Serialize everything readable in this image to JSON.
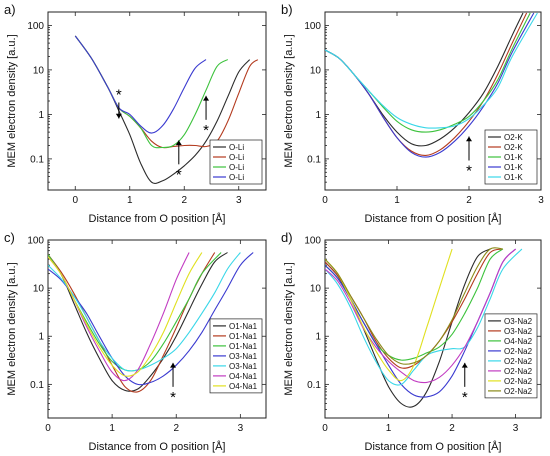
{
  "chart_data": [
    {
      "type": "line",
      "panel_label": "a)",
      "xlabel": "Distance from O position [Å]",
      "ylabel": "MEM electron density [a.u.]",
      "xlim": [
        -0.5,
        3.5
      ],
      "ylim": [
        0.02,
        200
      ],
      "yscale": "log",
      "xticks": [
        0,
        1,
        2,
        3
      ],
      "yticks": [
        0.1,
        1,
        10,
        100
      ],
      "ytick_labels": [
        "0.1",
        "1",
        "10",
        "100"
      ],
      "legend_position": "right-bottom",
      "series": [
        {
          "name": "O-Li",
          "color": "#2b2b2b",
          "x": [
            0,
            0.3,
            0.6,
            0.8,
            1.0,
            1.2,
            1.4,
            1.6,
            1.8,
            2.0,
            2.2,
            2.4,
            2.6,
            2.8,
            3.0,
            3.2
          ],
          "y": [
            58,
            18,
            4,
            1.2,
            0.35,
            0.08,
            0.03,
            0.032,
            0.045,
            0.07,
            0.12,
            0.25,
            0.7,
            2.5,
            9,
            17
          ]
        },
        {
          "name": "O-Li",
          "color": "#b33a1e",
          "x": [
            0,
            0.3,
            0.6,
            0.8,
            1.0,
            1.2,
            1.4,
            1.6,
            1.8,
            2.0,
            2.2,
            2.4,
            2.6,
            2.8,
            3.0,
            3.2,
            3.35
          ],
          "y": [
            58,
            18,
            4,
            1.4,
            0.9,
            0.5,
            0.25,
            0.18,
            0.19,
            0.2,
            0.2,
            0.19,
            0.25,
            0.7,
            3,
            12,
            17
          ]
        },
        {
          "name": "O-Li",
          "color": "#3cc23c",
          "x": [
            0,
            0.3,
            0.6,
            0.8,
            1.0,
            1.2,
            1.4,
            1.6,
            1.8,
            2.0,
            2.2,
            2.4,
            2.6,
            2.8
          ],
          "y": [
            58,
            18,
            4,
            1.4,
            0.9,
            0.5,
            0.2,
            0.18,
            0.2,
            0.35,
            1.0,
            3.5,
            12,
            17
          ]
        },
        {
          "name": "O-Li",
          "color": "#3a3ad0",
          "x": [
            0,
            0.3,
            0.6,
            0.8,
            1.0,
            1.2,
            1.4,
            1.6,
            1.8,
            2.0,
            2.2,
            2.4
          ],
          "y": [
            58,
            18,
            4,
            1.4,
            1.0,
            0.55,
            0.38,
            0.55,
            1.3,
            4,
            11,
            17
          ]
        }
      ],
      "annotations": [
        {
          "text": "*",
          "x": 0.8,
          "y": 2.8
        },
        {
          "text": "*",
          "x": 1.9,
          "y": 0.045
        },
        {
          "text": "*",
          "x": 2.4,
          "y": 0.45
        }
      ]
    },
    {
      "type": "line",
      "panel_label": "b)",
      "xlabel": "Distance from O position [Å]",
      "ylabel": "MEM electron density [a.u.]",
      "xlim": [
        0,
        3
      ],
      "ylim": [
        0.02,
        200
      ],
      "yscale": "log",
      "xticks": [
        0,
        1,
        2,
        3
      ],
      "yticks": [
        0.1,
        1,
        10,
        100
      ],
      "ytick_labels": [
        "0.1",
        "1",
        "10",
        "100"
      ],
      "legend_position": "right-bottom",
      "series": [
        {
          "name": "O2-K",
          "color": "#2b2b2b",
          "x": [
            0,
            0.2,
            0.4,
            0.6,
            0.8,
            1.0,
            1.2,
            1.4,
            1.6,
            1.8,
            2.0,
            2.2,
            2.4,
            2.6,
            2.75
          ],
          "y": [
            28,
            18,
            8,
            3,
            1.0,
            0.4,
            0.22,
            0.2,
            0.28,
            0.5,
            1.1,
            3,
            12,
            60,
            190
          ]
        },
        {
          "name": "O2-K",
          "color": "#b33a1e",
          "x": [
            0,
            0.2,
            0.4,
            0.6,
            0.8,
            1.0,
            1.2,
            1.4,
            1.6,
            1.8,
            2.0,
            2.2,
            2.4,
            2.6,
            2.8
          ],
          "y": [
            28,
            18,
            8,
            3,
            0.9,
            0.3,
            0.15,
            0.12,
            0.16,
            0.3,
            0.7,
            2,
            8,
            40,
            190
          ]
        },
        {
          "name": "O1-K",
          "color": "#3cc23c",
          "x": [
            0,
            0.2,
            0.4,
            0.6,
            0.8,
            1.0,
            1.2,
            1.4,
            1.6,
            1.8,
            2.0,
            2.2,
            2.4,
            2.6,
            2.85
          ],
          "y": [
            28,
            18,
            8,
            3.5,
            1.5,
            0.7,
            0.45,
            0.4,
            0.45,
            0.6,
            0.9,
            2,
            6,
            30,
            190
          ]
        },
        {
          "name": "O1-K",
          "color": "#3a3ad0",
          "x": [
            0,
            0.2,
            0.4,
            0.6,
            0.8,
            1.0,
            1.2,
            1.4,
            1.6,
            1.8,
            2.0,
            2.2,
            2.4,
            2.6,
            2.9
          ],
          "y": [
            28,
            18,
            8,
            3,
            0.9,
            0.3,
            0.14,
            0.11,
            0.14,
            0.25,
            0.55,
            1.5,
            5,
            25,
            190
          ]
        },
        {
          "name": "O1-K",
          "color": "#39d7e8",
          "x": [
            0,
            0.2,
            0.4,
            0.6,
            0.8,
            1.0,
            1.2,
            1.4,
            1.6,
            1.8,
            2.0,
            2.2,
            2.4,
            2.6,
            2.95
          ],
          "y": [
            28,
            18,
            8,
            3.5,
            1.6,
            0.85,
            0.6,
            0.5,
            0.5,
            0.55,
            0.8,
            1.6,
            4,
            20,
            190
          ]
        }
      ],
      "annotations": [
        {
          "text": "*",
          "x": 2.0,
          "y": 0.055
        }
      ]
    },
    {
      "type": "line",
      "panel_label": "c)",
      "xlabel": "Distance from O position [Å]",
      "ylabel": "MEM electron density [a.u.]",
      "xlim": [
        0,
        3.4
      ],
      "ylim": [
        0.02,
        100
      ],
      "yscale": "log",
      "xticks": [
        0,
        1,
        2,
        3
      ],
      "yticks": [
        0.1,
        1,
        10,
        100
      ],
      "ytick_labels": [
        "0.1",
        "1",
        "10",
        "100"
      ],
      "legend_position": "right",
      "series": [
        {
          "name": "O1-Na1",
          "color": "#2b2b2b",
          "x": [
            0,
            0.2,
            0.4,
            0.6,
            0.8,
            1.0,
            1.2,
            1.4,
            1.6,
            1.8,
            2.0,
            2.2,
            2.4,
            2.6,
            2.8
          ],
          "y": [
            50,
            20,
            5,
            1.2,
            0.35,
            0.12,
            0.075,
            0.08,
            0.15,
            0.35,
            1.0,
            3.5,
            12,
            35,
            55
          ]
        },
        {
          "name": "O1-Na1",
          "color": "#b33a1e",
          "x": [
            0,
            0.2,
            0.4,
            0.6,
            0.8,
            1.0,
            1.2,
            1.4,
            1.6,
            1.8,
            2.0,
            2.2,
            2.4,
            2.6
          ],
          "y": [
            50,
            22,
            8,
            2.5,
            0.8,
            0.25,
            0.09,
            0.07,
            0.12,
            0.4,
            1.5,
            6,
            20,
            55
          ]
        },
        {
          "name": "O1-Na1",
          "color": "#3cc23c",
          "x": [
            0,
            0.2,
            0.4,
            0.6,
            0.8,
            1.0,
            1.2,
            1.4,
            1.6,
            1.8,
            2.0,
            2.2,
            2.4,
            2.7
          ],
          "y": [
            50,
            20,
            6,
            2,
            0.7,
            0.3,
            0.2,
            0.2,
            0.3,
            0.7,
            2,
            6,
            20,
            55
          ]
        },
        {
          "name": "O3-Na1",
          "color": "#3a3ad0",
          "x": [
            0,
            0.2,
            0.4,
            0.6,
            0.8,
            1.0,
            1.2,
            1.4,
            1.6,
            1.8,
            2.0,
            2.2,
            2.4,
            2.6,
            2.8,
            3.0,
            3.2
          ],
          "y": [
            25,
            15,
            7,
            3,
            1.0,
            0.35,
            0.15,
            0.1,
            0.11,
            0.15,
            0.25,
            0.5,
            1.2,
            3.5,
            10,
            30,
            55
          ]
        },
        {
          "name": "O3-Na1",
          "color": "#39d7e8",
          "x": [
            0,
            0.2,
            0.4,
            0.6,
            0.8,
            1.0,
            1.2,
            1.4,
            1.6,
            1.8,
            2.0,
            2.2,
            2.4,
            2.6,
            2.8,
            3.0
          ],
          "y": [
            30,
            16,
            7,
            2.5,
            0.8,
            0.35,
            0.2,
            0.2,
            0.25,
            0.35,
            0.55,
            1.2,
            3,
            8,
            25,
            55
          ]
        },
        {
          "name": "O4-Na1",
          "color": "#c23cc2",
          "x": [
            0,
            0.2,
            0.4,
            0.6,
            0.8,
            1.0,
            1.2,
            1.4,
            1.6,
            1.8,
            2.0,
            2.2
          ],
          "y": [
            45,
            20,
            6,
            1.6,
            0.5,
            0.18,
            0.12,
            0.2,
            0.7,
            3,
            15,
            55
          ]
        },
        {
          "name": "O4-Na1",
          "color": "#e0e020",
          "x": [
            0,
            0.2,
            0.4,
            0.6,
            0.8,
            1.0,
            1.2,
            1.4,
            1.6,
            1.8,
            2.0,
            2.2,
            2.4
          ],
          "y": [
            45,
            20,
            6,
            1.8,
            0.6,
            0.25,
            0.15,
            0.18,
            0.4,
            1.2,
            5,
            20,
            55
          ]
        }
      ],
      "annotations": [
        {
          "text": "*",
          "x": 1.95,
          "y": 0.055
        }
      ]
    },
    {
      "type": "line",
      "panel_label": "d)",
      "xlabel": "Distance from O position [Å]",
      "ylabel": "MEM electron density [a.u.]",
      "xlim": [
        0,
        3.4
      ],
      "ylim": [
        0.02,
        100
      ],
      "yscale": "log",
      "xticks": [
        0,
        1,
        2,
        3
      ],
      "yticks": [
        0.1,
        1,
        10,
        100
      ],
      "ytick_labels": [
        "0.1",
        "1",
        "10",
        "100"
      ],
      "legend_position": "right",
      "series": [
        {
          "name": "O3-Na2",
          "color": "#2b2b2b",
          "x": [
            0,
            0.2,
            0.4,
            0.6,
            0.8,
            1.0,
            1.2,
            1.4,
            1.6,
            1.8,
            2.0,
            2.2,
            2.4,
            2.6
          ],
          "y": [
            35,
            18,
            6,
            1.5,
            0.35,
            0.09,
            0.04,
            0.035,
            0.07,
            0.3,
            2,
            12,
            45,
            65
          ]
        },
        {
          "name": "O3-Na2",
          "color": "#b33a1e",
          "x": [
            0,
            0.2,
            0.4,
            0.6,
            0.8,
            1.0,
            1.2,
            1.4,
            1.6,
            1.8,
            2.0,
            2.2,
            2.4,
            2.6,
            2.8
          ],
          "y": [
            35,
            18,
            7,
            2.5,
            0.8,
            0.35,
            0.22,
            0.25,
            0.4,
            0.8,
            2,
            6,
            20,
            55,
            65
          ]
        },
        {
          "name": "O4-Na2",
          "color": "#3cc23c",
          "x": [
            0,
            0.2,
            0.4,
            0.6,
            0.8,
            1.0,
            1.2,
            1.4,
            1.6,
            1.8,
            2.0,
            2.2,
            2.4,
            2.6,
            2.8
          ],
          "y": [
            30,
            16,
            6,
            2,
            0.7,
            0.4,
            0.32,
            0.35,
            0.45,
            0.6,
            1.1,
            3,
            10,
            40,
            65
          ]
        },
        {
          "name": "O2-Na2",
          "color": "#3a3ad0",
          "x": [
            0,
            0.2,
            0.4,
            0.6,
            0.8,
            1.0,
            1.2,
            1.4,
            1.6,
            1.8,
            2.0,
            2.2,
            2.4,
            2.6,
            2.8,
            3.0
          ],
          "y": [
            30,
            16,
            6,
            2,
            0.7,
            0.25,
            0.1,
            0.06,
            0.055,
            0.07,
            0.15,
            0.5,
            2,
            8,
            35,
            65
          ]
        },
        {
          "name": "O2-Na2",
          "color": "#39d7e8",
          "x": [
            0,
            0.2,
            0.4,
            0.6,
            0.8,
            1.0,
            1.2,
            1.4,
            1.6,
            1.8,
            2.0,
            2.2,
            2.4,
            2.6,
            2.8,
            3.1
          ],
          "y": [
            25,
            12,
            4,
            1.0,
            0.3,
            0.12,
            0.1,
            0.2,
            0.4,
            0.5,
            0.55,
            0.6,
            1.5,
            6,
            25,
            65
          ]
        },
        {
          "name": "O2-Na2",
          "color": "#c23cc2",
          "x": [
            0,
            0.2,
            0.4,
            0.6,
            0.8,
            1.0,
            1.2,
            1.4,
            1.6,
            1.8,
            2.0,
            2.2,
            2.4,
            2.6,
            2.8,
            3.0
          ],
          "y": [
            25,
            14,
            5,
            1.5,
            0.6,
            0.3,
            0.18,
            0.12,
            0.11,
            0.14,
            0.25,
            0.6,
            2,
            8,
            35,
            65
          ]
        },
        {
          "name": "O2-Na2",
          "color": "#e0e020",
          "x": [
            0,
            0.2,
            0.4,
            0.6,
            0.8,
            1.0,
            1.2,
            1.4,
            1.6,
            1.8,
            2.0
          ],
          "y": [
            40,
            20,
            6,
            1.6,
            0.5,
            0.2,
            0.12,
            0.25,
            1.5,
            10,
            65
          ]
        },
        {
          "name": "O2-Na2",
          "color": "#8a8a18",
          "x": [
            0,
            0.2,
            0.4,
            0.6,
            0.8,
            1.0,
            1.2,
            1.4,
            1.6,
            1.8,
            2.0,
            2.2,
            2.4,
            2.6,
            2.8
          ],
          "y": [
            40,
            20,
            7,
            2.5,
            0.9,
            0.4,
            0.27,
            0.28,
            0.4,
            0.8,
            2.2,
            8,
            28,
            65,
            65
          ]
        }
      ],
      "annotations": [
        {
          "text": "*",
          "x": 2.2,
          "y": 0.055
        }
      ]
    }
  ]
}
